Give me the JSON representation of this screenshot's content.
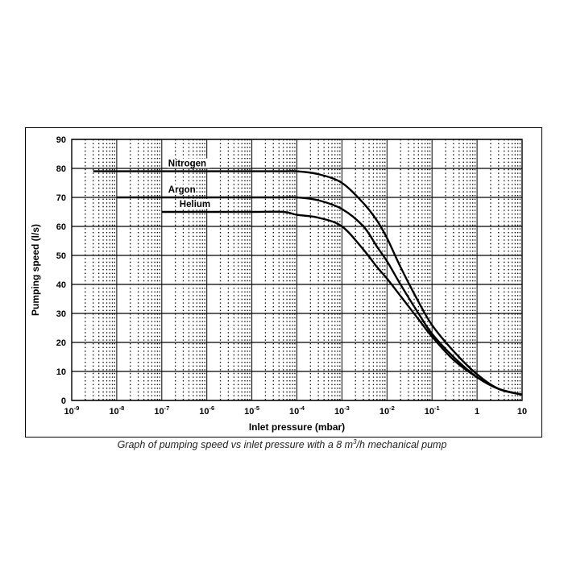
{
  "caption": {
    "prefix": "Graph of pumping speed vs inlet pressure with a 8 m",
    "sup": "3",
    "suffix": "/h mechanical pump"
  },
  "chart_data": {
    "type": "line",
    "xlabel": "Inlet pressure (mbar)",
    "ylabel": "Pumping speed (l/s)",
    "xscale": "log",
    "xlim": [
      1e-09,
      10
    ],
    "ylim": [
      0,
      90
    ],
    "grid": true,
    "x_ticks": [
      {
        "base": "10",
        "exp": "-9"
      },
      {
        "base": "10",
        "exp": "-8"
      },
      {
        "base": "10",
        "exp": "-7"
      },
      {
        "base": "10",
        "exp": "-6"
      },
      {
        "base": "10",
        "exp": "-5"
      },
      {
        "base": "10",
        "exp": "-4"
      },
      {
        "base": "10",
        "exp": "-3"
      },
      {
        "base": "10",
        "exp": "-2"
      },
      {
        "base": "10",
        "exp": "-1"
      },
      {
        "base": "1",
        "exp": ""
      },
      {
        "base": "10",
        "exp": ""
      }
    ],
    "y_ticks": [
      "0",
      "10",
      "20",
      "30",
      "40",
      "50",
      "60",
      "70",
      "80",
      "90"
    ],
    "series": [
      {
        "name": "Nitrogen",
        "x": [
          3e-09,
          1e-08,
          1e-07,
          1e-06,
          1e-05,
          5e-05,
          0.0001,
          0.0003,
          0.001,
          0.003,
          0.006,
          0.01,
          0.02,
          0.05,
          0.1,
          0.3,
          1,
          3,
          10
        ],
        "y": [
          79,
          79,
          79,
          79,
          79,
          79,
          79,
          78,
          75,
          68,
          62,
          56,
          46,
          34,
          26,
          17,
          9,
          4,
          2
        ]
      },
      {
        "name": "Argon",
        "x": [
          1e-08,
          1e-07,
          1e-06,
          1e-05,
          5e-05,
          0.0001,
          0.0003,
          0.001,
          0.003,
          0.006,
          0.01,
          0.02,
          0.05,
          0.1,
          0.3,
          1,
          3,
          10
        ],
        "y": [
          70,
          70,
          70,
          70,
          70,
          70,
          69,
          66,
          60,
          53,
          48,
          40,
          30,
          23,
          15,
          8,
          4,
          2
        ]
      },
      {
        "name": "Helium",
        "x": [
          1e-07,
          1e-06,
          1e-05,
          5e-05,
          0.0001,
          0.0003,
          0.001,
          0.003,
          0.006,
          0.01,
          0.02,
          0.05,
          0.1,
          0.3,
          1,
          3,
          10
        ],
        "y": [
          65,
          65,
          65,
          65,
          64,
          63,
          60,
          52,
          46,
          42,
          36,
          28,
          22,
          14,
          8,
          4,
          2
        ]
      }
    ]
  }
}
